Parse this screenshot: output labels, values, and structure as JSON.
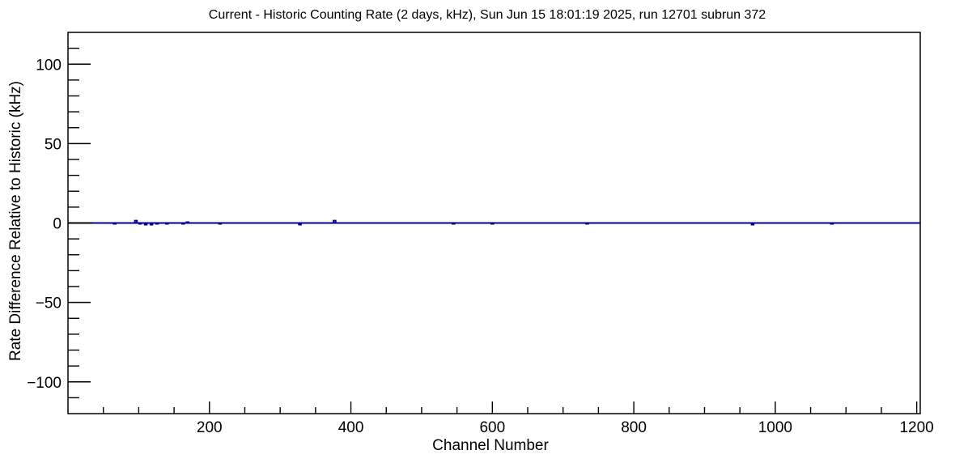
{
  "chart_data": {
    "type": "line",
    "title": "Current - Historic Counting Rate (2 days, kHz), Sun Jun 15 18:01:19 2025, run 12701 subrun 372",
    "run_info": {
      "quantity": "Current - Historic Counting Rate",
      "window": "2 days",
      "units": "kHz",
      "timestamp": "Sun Jun 15 18:01:19 2025",
      "run": "12701",
      "subrun": "372"
    },
    "xlabel": "Channel Number",
    "ylabel": "Rate Difference Relative to Historic (kHz)",
    "xlim": [
      0,
      1205
    ],
    "ylim": [
      -120,
      120
    ],
    "grid": false,
    "legend": null,
    "x_ticks": {
      "major_values": [
        200,
        400,
        600,
        800,
        1000,
        1200
      ],
      "major_labels": [
        "200",
        "400",
        "600",
        "800",
        "1000",
        "1200"
      ],
      "minor_step": 50
    },
    "y_ticks": {
      "major_values": [
        100,
        50,
        0,
        -50,
        -100
      ],
      "major_labels": [
        "100",
        "50",
        "0",
        "−50",
        "−100"
      ],
      "minor_step": 10
    },
    "colors": {
      "background": "#ffffff",
      "axis": "#000000",
      "baseline_series": "#000000",
      "rate_series": "#000099"
    },
    "series": [
      {
        "name": "zero-baseline",
        "color": "#000000",
        "line_width": 2,
        "baseline": 0,
        "x_range": [
          0,
          1205
        ],
        "spikes": []
      },
      {
        "name": "rate-difference",
        "color": "#000099",
        "line_width": 2,
        "baseline": 0,
        "x_range": [
          35,
          1205
        ],
        "spikes": [
          [
            66,
            -0.5
          ],
          [
            96,
            1.5
          ],
          [
            102,
            -0.5
          ],
          [
            110,
            -1.0
          ],
          [
            118,
            -1.0
          ],
          [
            126,
            -0.5
          ],
          [
            140,
            -0.5
          ],
          [
            163,
            -0.5
          ],
          [
            169,
            0.5
          ],
          [
            215,
            -0.5
          ],
          [
            328,
            -1.0
          ],
          [
            377,
            1.5
          ],
          [
            545,
            -0.5
          ],
          [
            600,
            -0.5
          ],
          [
            734,
            -0.5
          ],
          [
            968,
            -1.0
          ],
          [
            1080,
            -0.5
          ]
        ]
      }
    ]
  }
}
